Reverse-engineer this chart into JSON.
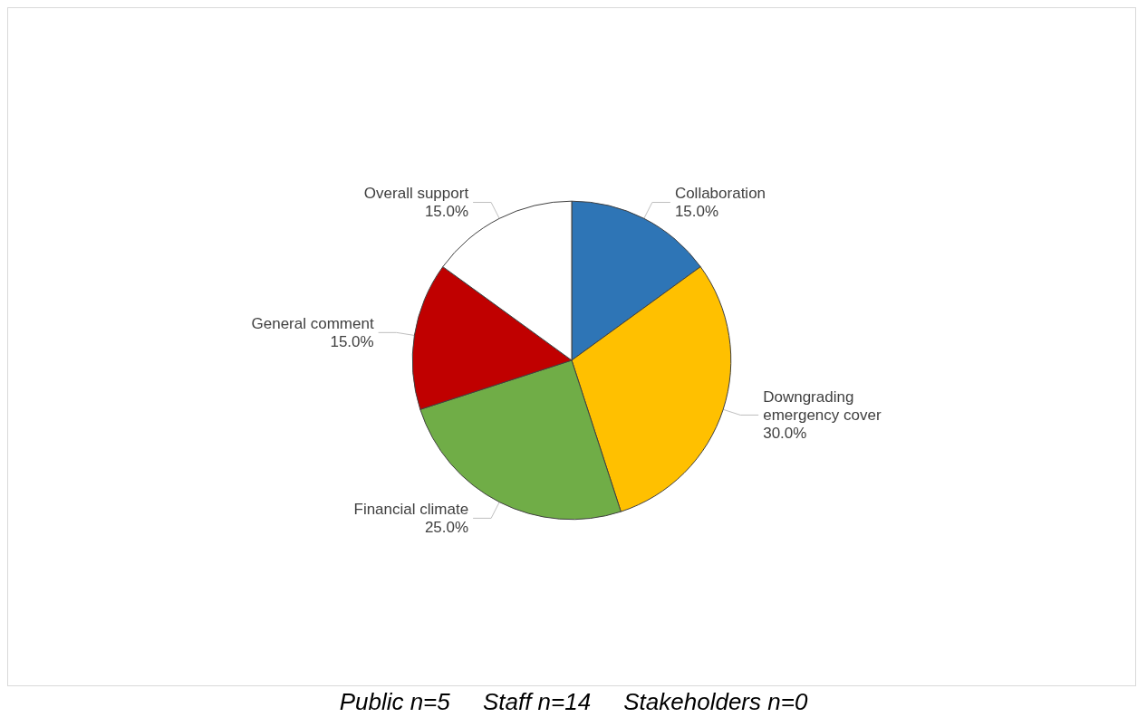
{
  "chart_data": {
    "type": "pie",
    "categories": [
      "Collaboration",
      "Downgrading emergency cover",
      "Financial climate",
      "General comment",
      "Overall support"
    ],
    "values": [
      15,
      30,
      25,
      15,
      15
    ],
    "value_labels": [
      "15.0%",
      "30.0%",
      "25.0%",
      "15.0%",
      "15.0%"
    ],
    "colors": [
      "#2e75b6",
      "#ffc000",
      "#70ad47",
      "#c00000",
      "#ffffff"
    ],
    "annotations": [
      "Public n=5     Staff n=14     Stakeholders n=0"
    ]
  }
}
